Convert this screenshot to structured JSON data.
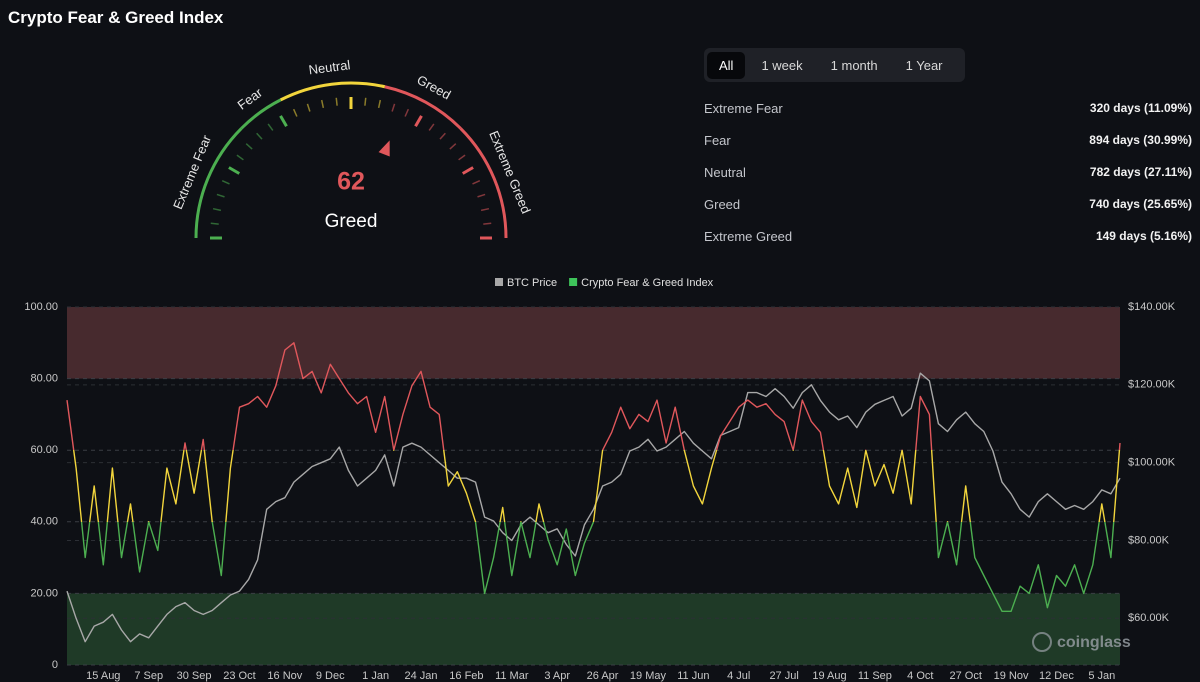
{
  "header": {
    "title": "Crypto Fear & Greed Index"
  },
  "tabs": [
    "All",
    "1 week",
    "1 month",
    "1 Year"
  ],
  "active_tab": 0,
  "stats": [
    {
      "label": "Extreme Fear",
      "value": "320 days (11.09%)"
    },
    {
      "label": "Fear",
      "value": "894 days (30.99%)"
    },
    {
      "label": "Neutral",
      "value": "782 days (27.11%)"
    },
    {
      "label": "Greed",
      "value": "740 days (25.65%)"
    },
    {
      "label": "Extreme Greed",
      "value": "149 days (5.16%)"
    }
  ],
  "watermark": "coinglass",
  "chart_data": [
    {
      "type": "gauge",
      "value": 62,
      "label": "Greed",
      "min": 0,
      "max": 100,
      "zones": [
        {
          "name": "Extreme Fear",
          "from": 0,
          "to": 25,
          "color": "#4caf50"
        },
        {
          "name": "Fear",
          "from": 25,
          "to": 35,
          "color": "#4caf50"
        },
        {
          "name": "Neutral",
          "from": 35,
          "to": 57,
          "color": "#f2d53c"
        },
        {
          "name": "Greed",
          "from": 57,
          "to": 75,
          "color": "#e0575b"
        },
        {
          "name": "Extreme Greed",
          "from": 75,
          "to": 100,
          "color": "#e0575b"
        }
      ]
    },
    {
      "type": "line",
      "categories": [
        null,
        null,
        null,
        null,
        "15 Aug",
        null,
        null,
        null,
        null,
        "7 Sep",
        null,
        null,
        null,
        null,
        "30 Sep",
        null,
        null,
        null,
        null,
        "23 Oct",
        null,
        null,
        null,
        null,
        "16 Nov",
        null,
        null,
        null,
        null,
        "9 Dec",
        null,
        null,
        null,
        null,
        "1 Jan",
        null,
        null,
        null,
        null,
        "24 Jan",
        null,
        null,
        null,
        null,
        "16 Feb",
        null,
        null,
        null,
        null,
        "11 Mar",
        null,
        null,
        null,
        null,
        "3 Apr",
        null,
        null,
        null,
        null,
        "26 Apr",
        null,
        null,
        null,
        null,
        "19 May",
        null,
        null,
        null,
        null,
        "11 Jun",
        null,
        null,
        null,
        null,
        "4 Jul",
        null,
        null,
        null,
        null,
        "27 Jul",
        null,
        null,
        null,
        null,
        "19 Aug",
        null,
        null,
        null,
        null,
        "11 Sep",
        null,
        null,
        null,
        null,
        "4 Oct",
        null,
        null,
        null,
        null,
        "27 Oct",
        null,
        null,
        null,
        null,
        "19 Nov",
        null,
        null,
        null,
        null,
        "12 Dec",
        null,
        null,
        null,
        null,
        "5 Jan",
        null,
        null
      ],
      "series": [
        {
          "name": "BTC Price",
          "color": "#a8a8a8",
          "axis": "y2",
          "values": [
            67000,
            60000,
            54000,
            58000,
            59000,
            61000,
            57000,
            54000,
            56000,
            55000,
            58000,
            61000,
            63000,
            64000,
            62000,
            61000,
            62000,
            64000,
            66000,
            67000,
            70000,
            75000,
            88000,
            90000,
            91000,
            95000,
            97000,
            99000,
            100000,
            101000,
            104000,
            98000,
            94000,
            96000,
            98000,
            102000,
            94000,
            104000,
            105000,
            104000,
            102000,
            100000,
            98000,
            96000,
            96000,
            95000,
            86000,
            85000,
            82000,
            80000,
            84000,
            86000,
            84000,
            82000,
            83000,
            79000,
            76000,
            84000,
            88000,
            94000,
            95000,
            97000,
            103000,
            104000,
            106000,
            103000,
            104000,
            106000,
            108000,
            105000,
            103000,
            101000,
            107000,
            108000,
            109000,
            118000,
            118000,
            117000,
            119000,
            117000,
            114000,
            118000,
            120000,
            116000,
            113000,
            111000,
            112000,
            109000,
            113000,
            115000,
            116000,
            117000,
            112000,
            114000,
            123000,
            121000,
            110000,
            108000,
            111000,
            113000,
            110000,
            108000,
            103000,
            95000,
            92000,
            88000,
            86000,
            90000,
            92000,
            90000,
            88000,
            89000,
            88000,
            90000,
            93000,
            92000,
            96000
          ]
        },
        {
          "name": "Crypto Fear & Greed Index",
          "color": "#3ec45a",
          "color_ranges": [
            {
              "from": 0,
              "to": 40,
              "color": "#4caf50"
            },
            {
              "from": 40,
              "to": 60,
              "color": "#f2d53c"
            },
            {
              "from": 60,
              "to": 100,
              "color": "#e0575b"
            }
          ],
          "values": [
            74,
            55,
            30,
            50,
            28,
            55,
            30,
            45,
            26,
            40,
            32,
            55,
            45,
            62,
            48,
            63,
            40,
            25,
            55,
            72,
            73,
            75,
            72,
            78,
            88,
            90,
            80,
            82,
            76,
            84,
            80,
            76,
            73,
            75,
            65,
            75,
            60,
            70,
            78,
            82,
            72,
            70,
            50,
            54,
            48,
            40,
            20,
            30,
            44,
            25,
            40,
            30,
            45,
            35,
            28,
            38,
            25,
            34,
            40,
            60,
            65,
            72,
            66,
            70,
            68,
            74,
            62,
            72,
            60,
            50,
            45,
            55,
            64,
            68,
            72,
            74,
            72,
            73,
            70,
            68,
            60,
            74,
            68,
            65,
            50,
            45,
            55,
            44,
            60,
            50,
            56,
            48,
            60,
            45,
            75,
            70,
            30,
            40,
            28,
            50,
            30,
            25,
            20,
            15,
            15,
            22,
            20,
            28,
            16,
            25,
            22,
            28,
            20,
            28,
            45,
            30,
            62
          ]
        }
      ],
      "ylim": [
        0,
        100
      ],
      "yticks": [
        {
          "value": 0,
          "label": "0"
        },
        {
          "value": 20,
          "label": "20.00"
        },
        {
          "value": 40,
          "label": "40.00"
        },
        {
          "value": 60,
          "label": "60.00"
        },
        {
          "value": 80,
          "label": "80.00"
        },
        {
          "value": 100,
          "label": "100.00"
        }
      ],
      "y2lim": [
        48000,
        140000
      ],
      "y2ticks": [
        {
          "value": 60000,
          "label": "$60.00K"
        },
        {
          "value": 80000,
          "label": "$80.00K"
        },
        {
          "value": 100000,
          "label": "$100.00K"
        },
        {
          "value": 120000,
          "label": "$120.00K"
        },
        {
          "value": 140000,
          "label": "$140.00K"
        }
      ],
      "zones": [
        {
          "from": 0,
          "to": 20,
          "color": "#1f3a27"
        },
        {
          "from": 80,
          "to": 100,
          "color": "#472a2e"
        }
      ],
      "grid": true,
      "legend": "top"
    }
  ]
}
